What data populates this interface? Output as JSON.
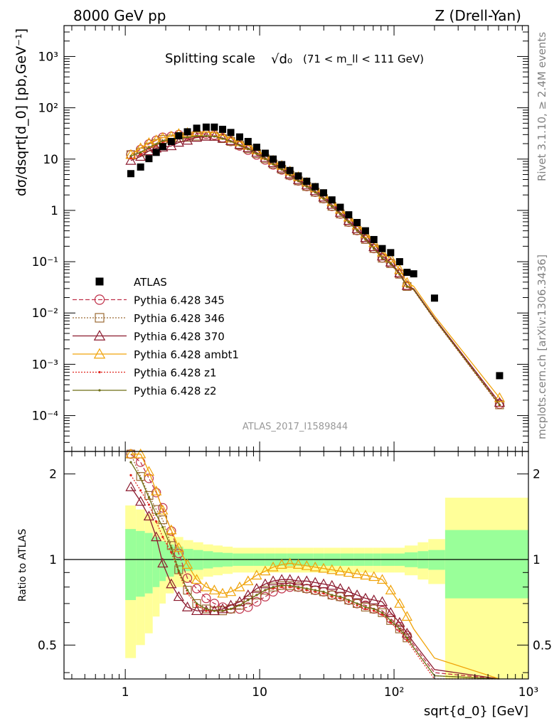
{
  "header": {
    "left": "8000 GeV pp",
    "right": "Z (Drell-Yan)"
  },
  "side_labels": {
    "rivet": "Rivet 3.1.10, ≥ 2.4M events",
    "mcplots": "mcplots.cern.ch [arXiv:1306.3436]"
  },
  "chart_data": [
    {
      "type": "scatter",
      "title": "Splitting scale",
      "title_symbol": "√d₀",
      "title_range": "(71 < m_ll < 111 GeV)",
      "analysis_id": "ATLAS_2017_I1589844",
      "ylabel": "dσ/dsqrt[d_0] [pb,GeV⁻¹]",
      "xlabel": "sqrt{d_0} [GeV]",
      "xscale": "log",
      "yscale": "log",
      "xlim": [
        0.35,
        1000
      ],
      "ylim": [
        2e-05,
        4000
      ],
      "x_ticks": [
        "1",
        "10",
        "10²",
        "10³"
      ],
      "y_ticks": [
        "10⁻⁴",
        "10⁻³",
        "10⁻²",
        "10⁻¹",
        "1",
        "10",
        "10²",
        "10³"
      ],
      "legend_position": "lower-left",
      "x": [
        1.1,
        1.3,
        1.5,
        1.7,
        1.9,
        2.2,
        2.5,
        2.9,
        3.4,
        4.0,
        4.6,
        5.3,
        6.1,
        7.1,
        8.2,
        9.5,
        11.0,
        12.6,
        14.6,
        16.8,
        19.4,
        22.4,
        25.9,
        29.9,
        34.5,
        39.8,
        46.0,
        53.1,
        61.3,
        70.8,
        81.7,
        94.4,
        110,
        125,
        140,
        200,
        610
      ],
      "series": [
        {
          "name": "ATLAS",
          "color": "#000000",
          "marker": "filled-square",
          "values": [
            5.2,
            7.0,
            10.2,
            13.5,
            17.5,
            22.0,
            28.5,
            34.0,
            40.0,
            42.0,
            42.0,
            38.0,
            33.0,
            27.0,
            22.0,
            17.0,
            13.0,
            10.0,
            7.8,
            6.0,
            4.7,
            3.7,
            2.9,
            2.2,
            1.6,
            1.15,
            0.82,
            0.58,
            0.4,
            0.27,
            0.18,
            0.15,
            0.1,
            0.062,
            0.058,
            0.0195,
            0.0006
          ]
        },
        {
          "name": "Pythia 6.428 345",
          "color": "#c0314a",
          "marker": "open-circle",
          "line": "dashed",
          "ratio": [
            2.35,
            2.2,
            1.93,
            1.72,
            1.52,
            1.26,
            1.05,
            0.86,
            0.79,
            0.73,
            0.7,
            0.68,
            0.67,
            0.67,
            0.68,
            0.71,
            0.74,
            0.77,
            0.79,
            0.8,
            0.8,
            0.79,
            0.78,
            0.77,
            0.75,
            0.74,
            0.72,
            0.7,
            0.69,
            0.67,
            0.66,
            0.62,
            0.58,
            0.54,
            0.5,
            0.4,
            0.28
          ]
        },
        {
          "name": "Pythia 6.428 346",
          "color": "#9b6a34",
          "marker": "open-square",
          "line": "dotted",
          "ratio": [
            2.35,
            1.96,
            1.68,
            1.5,
            1.38,
            1.12,
            0.92,
            0.78,
            0.7,
            0.67,
            0.66,
            0.66,
            0.67,
            0.69,
            0.72,
            0.75,
            0.78,
            0.8,
            0.81,
            0.81,
            0.8,
            0.79,
            0.78,
            0.77,
            0.75,
            0.74,
            0.72,
            0.7,
            0.68,
            0.67,
            0.65,
            0.61,
            0.57,
            0.53,
            0.49,
            0.39,
            0.27
          ]
        },
        {
          "name": "Pythia 6.428 370",
          "color": "#8b1a2e",
          "marker": "open-triangle",
          "line": "solid",
          "ratio": [
            1.8,
            1.6,
            1.42,
            1.2,
            0.97,
            0.82,
            0.74,
            0.68,
            0.66,
            0.66,
            0.66,
            0.67,
            0.69,
            0.71,
            0.75,
            0.79,
            0.82,
            0.84,
            0.85,
            0.85,
            0.84,
            0.84,
            0.83,
            0.82,
            0.81,
            0.79,
            0.77,
            0.75,
            0.73,
            0.72,
            0.71,
            0.65,
            0.6,
            0.55,
            0.51,
            0.41,
            0.3
          ]
        },
        {
          "name": "Pythia 6.428 ambt1",
          "color": "#f0a30a",
          "marker": "open-triangle",
          "line": "solid",
          "ratio": [
            2.35,
            2.35,
            2.04,
            1.74,
            1.49,
            1.27,
            1.1,
            0.96,
            0.85,
            0.8,
            0.78,
            0.76,
            0.77,
            0.8,
            0.84,
            0.88,
            0.91,
            0.94,
            0.96,
            0.97,
            0.96,
            0.95,
            0.94,
            0.93,
            0.92,
            0.91,
            0.9,
            0.89,
            0.88,
            0.87,
            0.85,
            0.78,
            0.7,
            0.63,
            0.57,
            0.45,
            0.37
          ]
        },
        {
          "name": "Pythia 6.428 z1",
          "color": "#e0261e",
          "marker": "small-dot",
          "line": "dotted",
          "ratio": [
            1.98,
            1.75,
            1.56,
            1.36,
            1.2,
            1.06,
            0.9,
            0.76,
            0.69,
            0.66,
            0.66,
            0.66,
            0.67,
            0.69,
            0.72,
            0.75,
            0.78,
            0.79,
            0.8,
            0.8,
            0.79,
            0.78,
            0.77,
            0.76,
            0.74,
            0.73,
            0.71,
            0.69,
            0.67,
            0.66,
            0.64,
            0.6,
            0.56,
            0.52,
            0.48,
            0.38,
            0.26
          ]
        },
        {
          "name": "Pythia 6.428 z2",
          "color": "#6e6e14",
          "marker": "small-dot",
          "line": "solid",
          "ratio": [
            2.2,
            1.93,
            1.65,
            1.44,
            1.3,
            1.1,
            0.91,
            0.78,
            0.7,
            0.67,
            0.66,
            0.66,
            0.67,
            0.69,
            0.72,
            0.75,
            0.78,
            0.8,
            0.81,
            0.81,
            0.8,
            0.79,
            0.78,
            0.77,
            0.75,
            0.74,
            0.72,
            0.7,
            0.68,
            0.67,
            0.65,
            0.61,
            0.57,
            0.53,
            0.49,
            0.39,
            0.27
          ]
        }
      ]
    },
    {
      "type": "line",
      "ylabel": "Ratio to ATLAS",
      "xlabel": "sqrt{d_0} [GeV]",
      "xscale": "log",
      "yscale": "log",
      "xlim": [
        0.35,
        1000
      ],
      "ylim": [
        0.38,
        2.4
      ],
      "y_ticks": [
        "0.5",
        "1",
        "2"
      ],
      "reference_line": 1,
      "band_edges": [
        1.0,
        1.2,
        1.4,
        1.6,
        1.8,
        2.0,
        2.3,
        2.7,
        3.2,
        3.8,
        4.5,
        5.3,
        6.3,
        7.5,
        9,
        11,
        13,
        16,
        20,
        25,
        30,
        40,
        50,
        60,
        70,
        80,
        100,
        120,
        150,
        180,
        240,
        1000
      ],
      "stat_band_half": [
        0.28,
        0.26,
        0.24,
        0.2,
        0.16,
        0.13,
        0.11,
        0.09,
        0.08,
        0.07,
        0.06,
        0.055,
        0.05,
        0.05,
        0.05,
        0.05,
        0.05,
        0.05,
        0.05,
        0.05,
        0.05,
        0.05,
        0.05,
        0.05,
        0.05,
        0.05,
        0.05,
        0.06,
        0.07,
        0.08,
        0.27
      ],
      "total_band_half": [
        0.55,
        0.5,
        0.45,
        0.37,
        0.3,
        0.24,
        0.2,
        0.17,
        0.15,
        0.13,
        0.12,
        0.11,
        0.1,
        0.1,
        0.1,
        0.1,
        0.1,
        0.1,
        0.1,
        0.1,
        0.1,
        0.1,
        0.1,
        0.1,
        0.1,
        0.1,
        0.1,
        0.12,
        0.15,
        0.18,
        0.65
      ]
    }
  ]
}
